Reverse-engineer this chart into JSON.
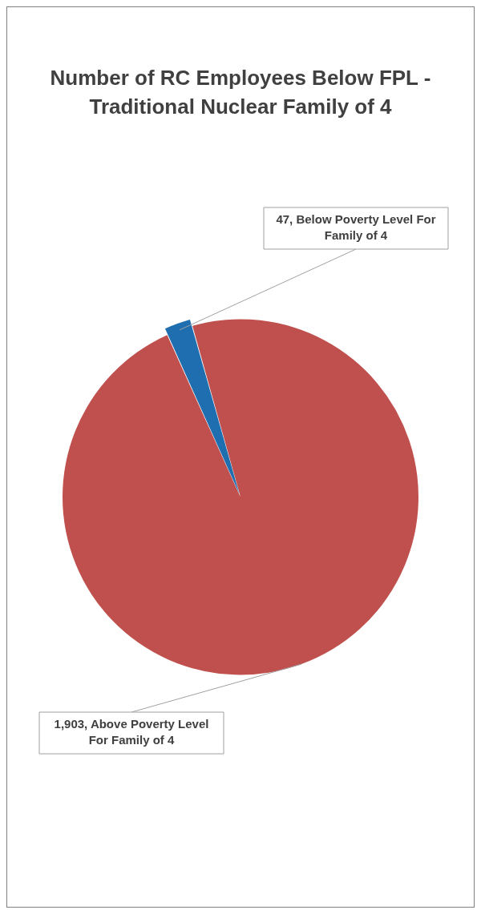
{
  "chart_data": {
    "type": "pie",
    "title": "Number of RC Employees Below FPL - Traditional Nuclear Family of 4",
    "categories": [
      "Above Poverty Level For Family of 4",
      "Below Poverty Level For Family of 4"
    ],
    "values": [
      1903,
      47
    ],
    "colors": [
      "#c0504d",
      "#1f6fb0"
    ],
    "value_labels": [
      "1,903",
      "47"
    ],
    "legend": false
  }
}
